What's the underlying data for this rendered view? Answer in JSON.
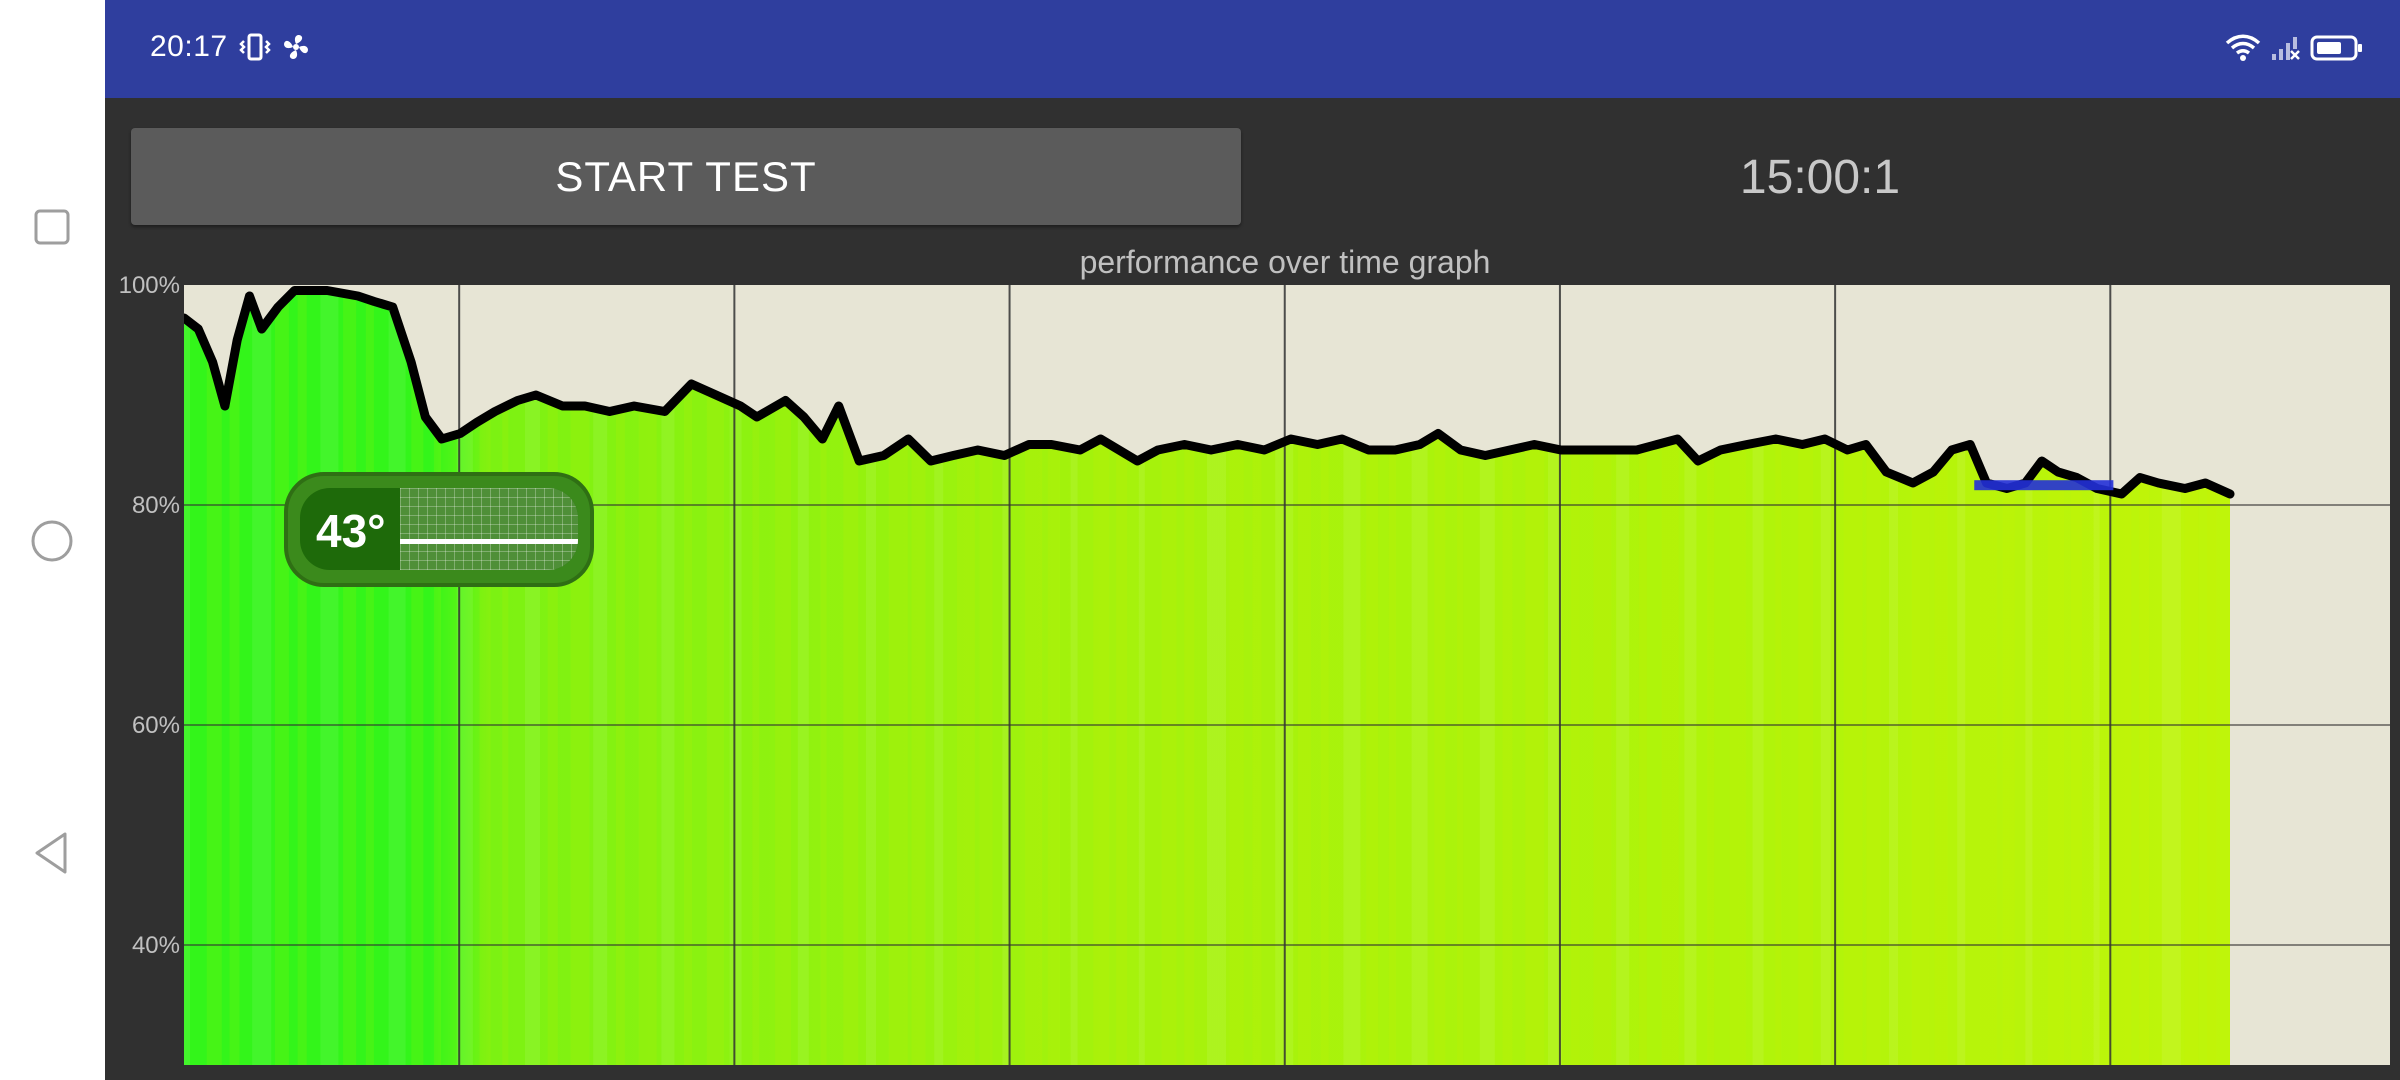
{
  "status_bar": {
    "time": "20:17",
    "icons": [
      "vibrate-icon",
      "fan-icon",
      "wifi-icon",
      "signal-icon",
      "battery-icon"
    ]
  },
  "controls": {
    "start_label": "START TEST",
    "timer": "15:00:1"
  },
  "temperature": {
    "value": "43°"
  },
  "navigation": {
    "icons": [
      "recent-apps-icon",
      "home-icon",
      "back-icon"
    ]
  },
  "chart_data": {
    "type": "line",
    "title": "performance over time graph",
    "yticks": [
      "100%",
      "80%",
      "60%",
      "40%"
    ],
    "ylim": [
      30,
      100
    ],
    "xlim": [
      0,
      100
    ],
    "grid": true,
    "colors": {
      "background": "#e7e5d5",
      "line": "#000000",
      "fill_start": "#33f51a",
      "fill_end": "#bff50a",
      "marker": "#2230d8"
    },
    "series": [
      {
        "points": [
          [
            0,
            97
          ],
          [
            0.7,
            96
          ],
          [
            1.4,
            93
          ],
          [
            2,
            89
          ],
          [
            2.6,
            95
          ],
          [
            3.2,
            99
          ],
          [
            3.8,
            96
          ],
          [
            4.6,
            98
          ],
          [
            5.4,
            99.5
          ],
          [
            7,
            99.5
          ],
          [
            8.5,
            99
          ],
          [
            9.3,
            98.5
          ],
          [
            10.2,
            98
          ],
          [
            11.1,
            93
          ],
          [
            11.8,
            88
          ],
          [
            12.6,
            86
          ],
          [
            13.5,
            86.5
          ],
          [
            14.3,
            87.5
          ],
          [
            15.2,
            88.5
          ],
          [
            16.3,
            89.5
          ],
          [
            17.2,
            90
          ],
          [
            18.5,
            89
          ],
          [
            19.6,
            89
          ],
          [
            20.8,
            88.5
          ],
          [
            22,
            89
          ],
          [
            23.5,
            88.5
          ],
          [
            24.8,
            91
          ],
          [
            26,
            90
          ],
          [
            27.2,
            89
          ],
          [
            28,
            88
          ],
          [
            29.4,
            89.5
          ],
          [
            30.3,
            88
          ],
          [
            31.2,
            86
          ],
          [
            32,
            89
          ],
          [
            33,
            84
          ],
          [
            34.2,
            84.5
          ],
          [
            35.4,
            86
          ],
          [
            36.5,
            84
          ],
          [
            37.6,
            84.5
          ],
          [
            38.8,
            85
          ],
          [
            40.1,
            84.5
          ],
          [
            41.3,
            85.5
          ],
          [
            42.4,
            85.5
          ],
          [
            43.8,
            85
          ],
          [
            44.8,
            86
          ],
          [
            45.7,
            85
          ],
          [
            46.6,
            84
          ],
          [
            47.6,
            85
          ],
          [
            48.9,
            85.5
          ],
          [
            50.2,
            85
          ],
          [
            51.5,
            85.5
          ],
          [
            52.8,
            85
          ],
          [
            54.1,
            86
          ],
          [
            55.4,
            85.5
          ],
          [
            56.6,
            86
          ],
          [
            57.9,
            85
          ],
          [
            59.2,
            85
          ],
          [
            60.4,
            85.5
          ],
          [
            61.3,
            86.5
          ],
          [
            62.4,
            85
          ],
          [
            63.6,
            84.5
          ],
          [
            64.8,
            85
          ],
          [
            66,
            85.5
          ],
          [
            67.3,
            85
          ],
          [
            68.6,
            85
          ],
          [
            69.8,
            85
          ],
          [
            71,
            85
          ],
          [
            72,
            85.5
          ],
          [
            73,
            86
          ],
          [
            74,
            84
          ],
          [
            75.1,
            85
          ],
          [
            76.4,
            85.5
          ],
          [
            77.8,
            86
          ],
          [
            79.1,
            85.5
          ],
          [
            80.2,
            86
          ],
          [
            81.3,
            85
          ],
          [
            82.2,
            85.5
          ],
          [
            83.2,
            83
          ],
          [
            84.5,
            82
          ],
          [
            85.5,
            83
          ],
          [
            86.4,
            85
          ],
          [
            87.3,
            85.5
          ],
          [
            88.1,
            82
          ],
          [
            89.1,
            81.5
          ],
          [
            90,
            82
          ],
          [
            90.8,
            84
          ],
          [
            91.6,
            83
          ],
          [
            92.5,
            82.5
          ],
          [
            93.5,
            81.5
          ],
          [
            94.7,
            81
          ],
          [
            95.6,
            82.5
          ],
          [
            96.5,
            82
          ],
          [
            97.8,
            81.5
          ],
          [
            98.8,
            82
          ],
          [
            100,
            81
          ]
        ]
      }
    ],
    "marker": {
      "x0": 87.5,
      "x1": 94.3,
      "y": 81.8
    }
  }
}
